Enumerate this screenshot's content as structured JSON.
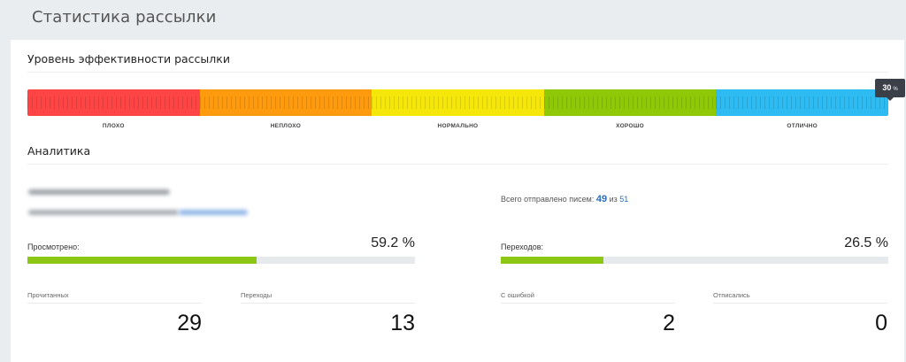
{
  "header": {
    "title": "Статистика рассылки"
  },
  "efficiency": {
    "title": "Уровень эффективности рассылки",
    "segments": [
      {
        "label": "ПЛОХО",
        "color": "#fe4545"
      },
      {
        "label": "НЕПЛОХО",
        "color": "#fd9a0e"
      },
      {
        "label": "НОРМАЛЬНО",
        "color": "#f6e70a"
      },
      {
        "label": "ХОРОШО",
        "color": "#8ec806"
      },
      {
        "label": "ОТЛИЧНО",
        "color": "#2ebbf2"
      }
    ],
    "score": {
      "value": "30",
      "unit": "%"
    }
  },
  "analytics": {
    "title": "Аналитика",
    "sent": {
      "prefix": "Всего отправлено писем:",
      "count": "49",
      "of_label": "из",
      "total": "51"
    },
    "metrics": [
      {
        "label": "Просмотрено:",
        "value": "59.2 %",
        "percent": 59.2
      },
      {
        "label": "Переходов:",
        "value": "26.5 %",
        "percent": 26.5
      }
    ],
    "stats": [
      {
        "label": "Прочитанных",
        "value": "29"
      },
      {
        "label": "Переходы",
        "value": "13"
      },
      {
        "label": "С ошибкой",
        "value": "2"
      },
      {
        "label": "Отписались",
        "value": "0"
      }
    ]
  },
  "colors": {
    "accent_link": "#2a6ebb",
    "progress_fill": "#8cc713",
    "progress_track": "#e6eaed"
  }
}
